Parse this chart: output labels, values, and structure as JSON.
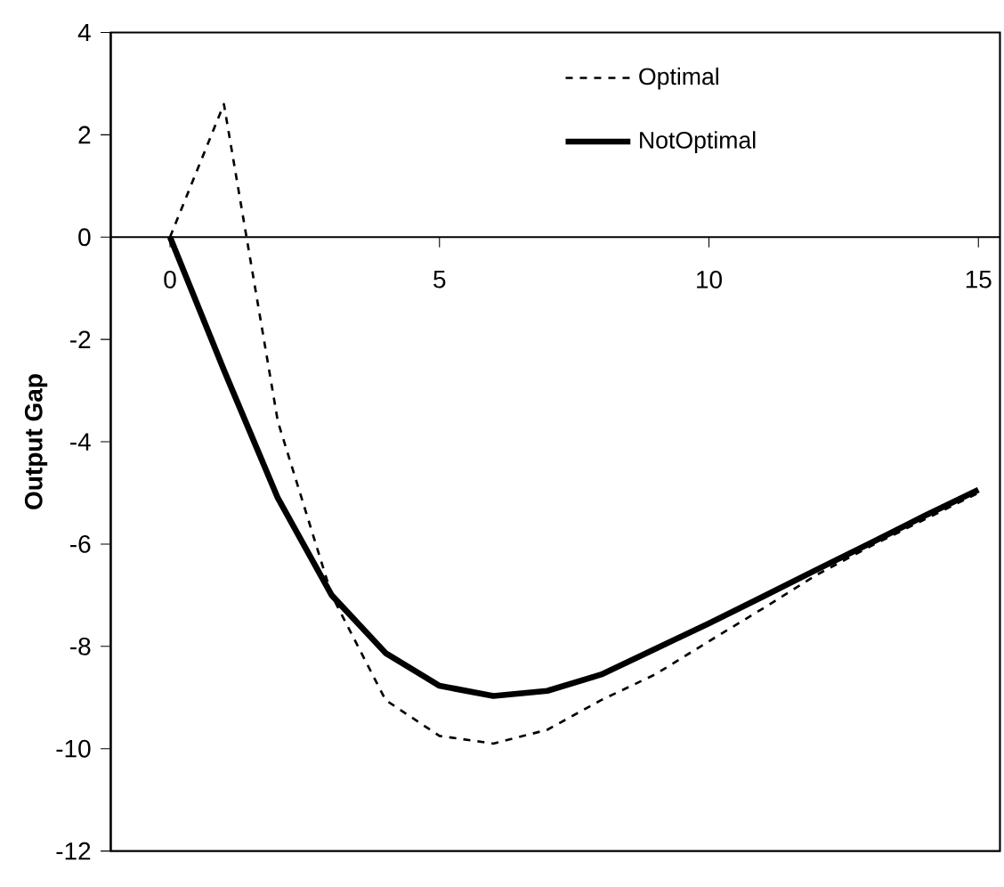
{
  "chart_data": {
    "type": "line",
    "ylabel": "**Output Gap**",
    "x": [
      0,
      1,
      2,
      3,
      4,
      5,
      6,
      7,
      8,
      9,
      10,
      11,
      12,
      13,
      14,
      15
    ],
    "series": [
      {
        "name": "Optimal",
        "color": "#000000",
        "line_style": "dashed",
        "values": [
          0,
          2.6,
          -3.6,
          -7.0,
          -9.05,
          -9.75,
          -9.9,
          -9.63,
          -9.05,
          -8.55,
          -7.9,
          -7.26,
          -6.6,
          -6.04,
          -5.52,
          -5.0
        ]
      },
      {
        "name": "NotOptimal",
        "color": "#000000",
        "line_style": "solid",
        "values": [
          0,
          -2.6,
          -5.1,
          -7.0,
          -8.13,
          -8.77,
          -8.97,
          -8.87,
          -8.55,
          -8.05,
          -7.55,
          -7.03,
          -6.5,
          -5.98,
          -5.45,
          -4.94
        ]
      }
    ],
    "xlim": [
      -1.1,
      15.4
    ],
    "xticks": [
      0,
      5,
      10,
      15
    ],
    "ylim": [
      -12,
      4
    ],
    "yticks": [
      -12,
      -10,
      -8,
      -6,
      -4,
      -2,
      0,
      2,
      4
    ],
    "grid": false,
    "legend": "top",
    "marker": "none"
  }
}
